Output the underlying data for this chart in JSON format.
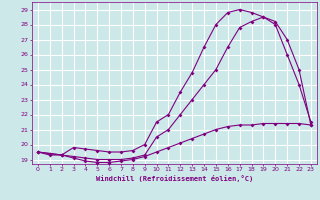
{
  "xlabel": "Windchill (Refroidissement éolien,°C)",
  "bg_color": "#cce8e8",
  "grid_color": "#ffffff",
  "line_color": "#800080",
  "xlim": [
    -0.5,
    23.5
  ],
  "ylim": [
    18.7,
    29.5
  ],
  "xticks": [
    0,
    1,
    2,
    3,
    4,
    5,
    6,
    7,
    8,
    9,
    10,
    11,
    12,
    13,
    14,
    15,
    16,
    17,
    18,
    19,
    20,
    21,
    22,
    23
  ],
  "yticks": [
    19,
    20,
    21,
    22,
    23,
    24,
    25,
    26,
    27,
    28,
    29
  ],
  "line1_x": [
    0,
    1,
    2,
    3,
    4,
    5,
    6,
    7,
    8,
    9,
    10,
    11,
    12,
    13,
    14,
    15,
    16,
    17,
    18,
    19,
    20,
    21,
    22,
    23
  ],
  "line1_y": [
    19.5,
    19.3,
    19.3,
    19.1,
    18.9,
    18.8,
    18.8,
    18.9,
    19.0,
    19.2,
    19.5,
    19.8,
    20.1,
    20.4,
    20.7,
    21.0,
    21.2,
    21.3,
    21.3,
    21.4,
    21.4,
    21.4,
    21.4,
    21.3
  ],
  "line2_x": [
    0,
    1,
    2,
    3,
    4,
    5,
    6,
    7,
    8,
    9,
    10,
    11,
    12,
    13,
    14,
    15,
    16,
    17,
    18,
    19,
    20,
    21,
    22,
    23
  ],
  "line2_y": [
    19.5,
    19.4,
    19.3,
    19.2,
    19.1,
    19.0,
    19.0,
    19.0,
    19.1,
    19.3,
    20.5,
    21.0,
    22.0,
    23.0,
    24.0,
    25.0,
    26.5,
    27.8,
    28.2,
    28.5,
    28.0,
    26.0,
    24.0,
    21.5
  ],
  "line3_x": [
    0,
    1,
    2,
    3,
    4,
    5,
    6,
    7,
    8,
    9,
    10,
    11,
    12,
    13,
    14,
    15,
    16,
    17,
    18,
    19,
    20,
    21,
    22,
    23
  ],
  "line3_y": [
    19.5,
    19.4,
    19.3,
    19.8,
    19.7,
    19.6,
    19.5,
    19.5,
    19.6,
    20.0,
    21.5,
    22.0,
    23.5,
    24.8,
    26.5,
    28.0,
    28.8,
    29.0,
    28.8,
    28.5,
    28.2,
    27.0,
    25.0,
    21.3
  ]
}
